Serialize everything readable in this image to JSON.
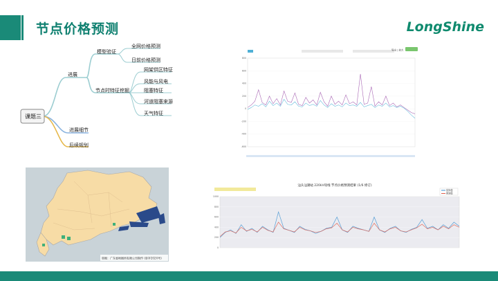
{
  "header": {
    "title": "节点价格预测",
    "logo": "LongShine"
  },
  "mindmap": {
    "root": "课题三",
    "branches": [
      {
        "label": "进展",
        "children": [
          {
            "label": "模型验证",
            "children": [
              "全网价格预测",
              "日前价格预测"
            ]
          },
          {
            "label": "节点时特征挖掘",
            "children": [
              "网架供区特征",
              "风能与风电",
              "阻塞特征",
              "河道阻塞来源",
              "天气特征"
            ]
          }
        ]
      },
      {
        "label": "进展细节",
        "children": []
      },
      {
        "label": "后续规划",
        "children": []
      }
    ],
    "colors": {
      "progress": "#9ccdd1",
      "detail": "#8ab4e0",
      "plan": "#e6b84a",
      "root": "#555555"
    }
  },
  "map": {
    "caption": "审图：广东省地图所有限公司制作 (审字202X号)"
  },
  "chart_top": {
    "legend_button": "导出 | 放大"
  },
  "chart_data": [
    {
      "type": "line",
      "title": "",
      "ylim": [
        -600,
        800
      ],
      "yticks": [
        -600,
        -400,
        -200,
        0,
        200,
        400,
        600,
        800
      ],
      "series": [
        {
          "color": "#4fb0d6",
          "values": [
            -10,
            20,
            60,
            40,
            80,
            30,
            120,
            50,
            90,
            40,
            150,
            70,
            60,
            110,
            40,
            30,
            90,
            50,
            70,
            40,
            130,
            60,
            20,
            80,
            40,
            60,
            30,
            90,
            50,
            60,
            40,
            100,
            30,
            50,
            70,
            20,
            60,
            40,
            90,
            30,
            50,
            20,
            40,
            10,
            -40,
            -100,
            -150
          ]
        },
        {
          "color": "#9a4ca8",
          "values": [
            20,
            60,
            120,
            300,
            100,
            60,
            200,
            80,
            160,
            60,
            280,
            120,
            100,
            250,
            70,
            50,
            180,
            90,
            140,
            60,
            260,
            110,
            40,
            200,
            70,
            120,
            60,
            220,
            80,
            110,
            60,
            550,
            70,
            90,
            350,
            40,
            110,
            60,
            200,
            50,
            90,
            30,
            60,
            20,
            -20,
            -60,
            -80
          ]
        }
      ]
    },
    {
      "type": "line",
      "title": "汕头汕潮站 220kV母线 节点价格预测结果 (1/6 修订)",
      "ylim": [
        0,
        1000
      ],
      "yticks": [
        0,
        200,
        400,
        600,
        800,
        1000
      ],
      "legend": [
        "实际值",
        "预测值"
      ],
      "series": [
        {
          "name": "实际值",
          "color": "#3a8fd0",
          "values": [
            200,
            300,
            350,
            280,
            450,
            320,
            380,
            300,
            420,
            350,
            300,
            700,
            380,
            340,
            300,
            420,
            360,
            330,
            280,
            320,
            380,
            400,
            600,
            350,
            300,
            420,
            380,
            350,
            320,
            600,
            350,
            300,
            380,
            420,
            330,
            300,
            360,
            400,
            550,
            380,
            420,
            350,
            450,
            380,
            500,
            420
          ]
        },
        {
          "name": "预测值",
          "color": "#e05a4a",
          "values": [
            220,
            310,
            330,
            290,
            400,
            330,
            360,
            310,
            400,
            340,
            310,
            500,
            370,
            340,
            310,
            400,
            350,
            330,
            300,
            320,
            370,
            390,
            480,
            350,
            310,
            400,
            370,
            350,
            320,
            480,
            350,
            310,
            370,
            400,
            330,
            310,
            350,
            390,
            460,
            370,
            400,
            350,
            420,
            370,
            450,
            400
          ]
        }
      ]
    }
  ]
}
